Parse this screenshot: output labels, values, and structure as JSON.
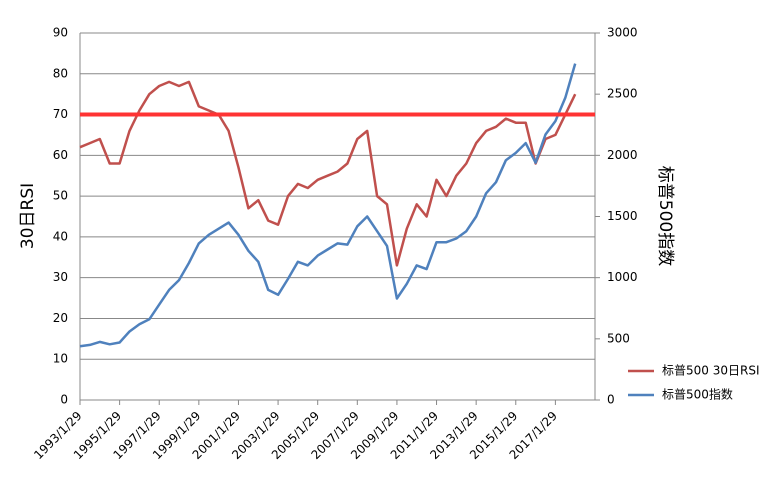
{
  "chart_data": {
    "type": "line",
    "x": [
      "1993/1/29",
      "1993/7/29",
      "1994/1/29",
      "1994/7/29",
      "1995/1/29",
      "1995/7/29",
      "1996/1/29",
      "1996/7/29",
      "1997/1/29",
      "1997/7/29",
      "1998/1/29",
      "1998/7/29",
      "1999/1/29",
      "1999/7/29",
      "2000/1/29",
      "2000/7/29",
      "2001/1/29",
      "2001/7/29",
      "2002/1/29",
      "2002/7/29",
      "2003/1/29",
      "2003/7/29",
      "2004/1/29",
      "2004/7/29",
      "2005/1/29",
      "2005/7/29",
      "2006/1/29",
      "2006/7/29",
      "2007/1/29",
      "2007/7/29",
      "2008/1/29",
      "2008/7/29",
      "2009/1/29",
      "2009/7/29",
      "2010/1/29",
      "2010/7/29",
      "2011/1/29",
      "2011/7/29",
      "2012/1/29",
      "2012/7/29",
      "2013/1/29",
      "2013/7/29",
      "2014/1/29",
      "2014/7/29",
      "2015/1/29",
      "2015/7/29",
      "2016/1/29",
      "2016/7/29",
      "2017/1/29",
      "2017/7/29",
      "2018/1/29"
    ],
    "series": [
      {
        "name": "标普500 30日RSI",
        "color": "#c0504d",
        "axis": "y",
        "values": [
          62,
          63,
          64,
          58,
          58,
          66,
          71,
          75,
          77,
          78,
          77,
          78,
          72,
          71,
          70,
          66,
          57,
          47,
          49,
          44,
          43,
          50,
          53,
          52,
          54,
          55,
          56,
          58,
          64,
          66,
          50,
          48,
          33,
          42,
          48,
          45,
          54,
          50,
          55,
          58,
          63,
          66,
          67,
          69,
          68,
          68,
          58,
          64,
          65,
          70,
          75
        ]
      },
      {
        "name": "标普500指数",
        "color": "#4f81bd",
        "axis": "y2",
        "values": [
          440,
          450,
          475,
          455,
          470,
          560,
          620,
          660,
          780,
          900,
          980,
          1120,
          1280,
          1350,
          1400,
          1450,
          1350,
          1220,
          1130,
          900,
          860,
          990,
          1130,
          1100,
          1180,
          1230,
          1280,
          1270,
          1420,
          1500,
          1380,
          1260,
          830,
          950,
          1100,
          1070,
          1290,
          1290,
          1320,
          1380,
          1500,
          1690,
          1780,
          1960,
          2020,
          2100,
          1940,
          2170,
          2280,
          2470,
          2750
        ]
      }
    ],
    "y_label": "30日RSI",
    "y2_label": "标普500指数",
    "xlim": [
      "1993/1/29",
      "2019/1/29"
    ],
    "xticks": [
      "1993/1/29",
      "1995/1/29",
      "1997/1/29",
      "1999/1/29",
      "2001/1/29",
      "2003/1/29",
      "2005/1/29",
      "2007/1/29",
      "2009/1/29",
      "2011/1/29",
      "2013/1/29",
      "2015/1/29",
      "2017/1/29"
    ],
    "ylim": [
      0,
      90
    ],
    "yticks": [
      0,
      10,
      20,
      30,
      40,
      50,
      60,
      70,
      80,
      90
    ],
    "y2lim": [
      0,
      3000
    ],
    "y2ticks": [
      0,
      500,
      1000,
      1500,
      2000,
      2500,
      3000
    ],
    "reference_line": {
      "value": 70,
      "color": "#ff3333"
    },
    "grid": true,
    "legend": "right"
  }
}
